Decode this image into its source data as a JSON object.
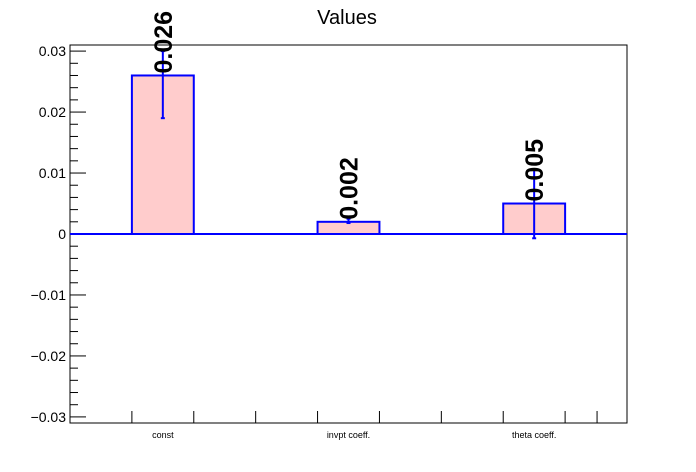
{
  "chart_data": {
    "type": "bar",
    "title": "Values",
    "xlabel": "",
    "ylabel": "",
    "categories": [
      "const",
      "invpt coeff.",
      "theta coeff."
    ],
    "values": [
      0.026,
      0.002,
      0.005
    ],
    "error_low": [
      0.019,
      0.0018,
      -0.0007
    ],
    "error_high": [
      0.03,
      0.0025,
      0.0105
    ],
    "data_labels": [
      "0.026",
      "0.002",
      "0.005"
    ],
    "ylim": [
      -0.031,
      0.031
    ],
    "yticks": [
      -0.03,
      -0.02,
      -0.01,
      0,
      0.01,
      0.02,
      0.03
    ],
    "ytick_labels": [
      "−0.03",
      "−0.02",
      "−0.01",
      "0",
      "0.01",
      "0.02",
      "0.03"
    ],
    "grid": false,
    "legend": "none",
    "colors": {
      "bar_fill": "#ffcccc",
      "bar_edge": "#0000ff",
      "error_bar": "#0000ff",
      "zero_line": "#0000ff",
      "frame": "#000000"
    }
  }
}
